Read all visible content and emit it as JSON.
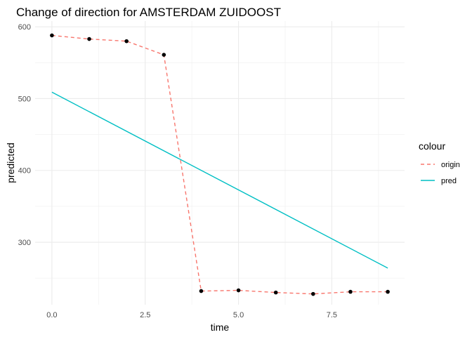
{
  "chart_data": {
    "type": "line",
    "title": "Change of direction for AMSTERDAM ZUIDOOST",
    "xlabel": "time",
    "ylabel": "predicted",
    "xlim": [
      -0.45,
      9.45
    ],
    "ylim": [
      213,
      608
    ],
    "x_ticks": [
      0,
      2.5,
      5,
      7.5
    ],
    "x_tick_labels": [
      "0.0",
      "2.5",
      "5.0",
      "7.5"
    ],
    "y_ticks": [
      300,
      400,
      500,
      600
    ],
    "y_tick_labels": [
      "300",
      "400",
      "500",
      "600"
    ],
    "grid": true,
    "legend": {
      "title": "colour",
      "position": "right"
    },
    "series": [
      {
        "name": "origin",
        "color": "#F8766D",
        "style": "dashed",
        "markers": true,
        "marker_color": "#000000",
        "x": [
          0,
          1,
          2,
          3,
          4,
          5,
          6,
          7,
          8,
          9
        ],
        "y": [
          588,
          583,
          580,
          561,
          232,
          233,
          230,
          228,
          231,
          231
        ]
      },
      {
        "name": "pred",
        "color": "#00BFC4",
        "style": "solid",
        "markers": false,
        "x": [
          0,
          9
        ],
        "y": [
          509,
          264
        ]
      }
    ]
  }
}
